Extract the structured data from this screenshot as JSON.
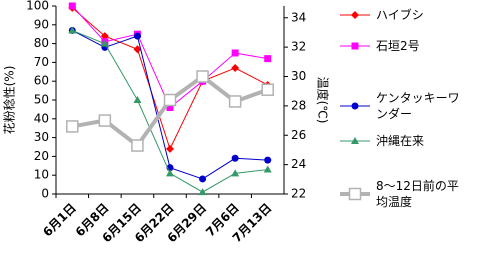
{
  "chart_data": {
    "type": "line",
    "y_label": "花粉稔性(%)",
    "y2_label": "温度(℃)",
    "categories": [
      "6月1日",
      "6月8日",
      "6月15日",
      "6月22日",
      "6月29日",
      "7月6日",
      "7月13日"
    ],
    "ylim": [
      0,
      100
    ],
    "yticks": [
      0,
      10,
      20,
      30,
      40,
      50,
      60,
      70,
      80,
      90,
      100
    ],
    "y2lim": [
      22,
      34.8
    ],
    "y2ticks": [
      22,
      24,
      26,
      28,
      30,
      32,
      34
    ],
    "series": [
      {
        "name": "ハイブシ",
        "color": "#ff0000",
        "marker": "diamond",
        "values": [
          99,
          84,
          77,
          24,
          60,
          67,
          58
        ]
      },
      {
        "name": "石垣2号",
        "color": "#ff00ff",
        "marker": "square",
        "values": [
          100,
          81,
          85,
          46,
          60,
          75,
          72
        ]
      },
      {
        "name": "ケンタッキーワンダー",
        "color": "#0000cc",
        "marker": "circle",
        "values": [
          87,
          78,
          84,
          14,
          8,
          19,
          18
        ]
      },
      {
        "name": "沖縄在来",
        "color": "#339966",
        "marker": "triangle",
        "values": [
          87,
          80,
          50,
          11,
          1,
          11,
          13
        ]
      },
      {
        "name": "8〜12日前の平均温度",
        "color": "#b2b2b2",
        "marker": "open-square",
        "axis": "y2",
        "values": [
          26.6,
          27.0,
          25.3,
          28.4,
          30.0,
          28.3,
          29.1
        ]
      }
    ]
  }
}
